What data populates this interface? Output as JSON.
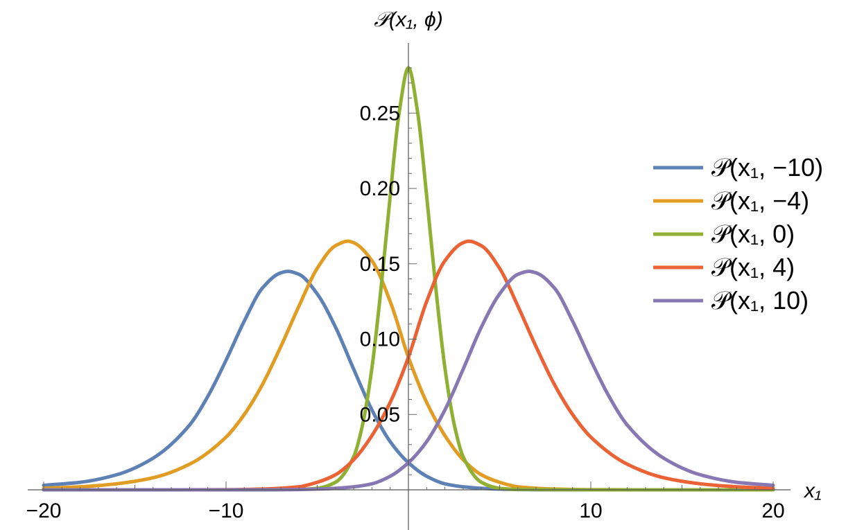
{
  "chart_data": {
    "type": "line",
    "xlabel": "x₁",
    "ylabel": "𝒫(x₁, ϕ)",
    "xlim": [
      -20,
      20
    ],
    "ylim": [
      0,
      0.28
    ],
    "x_ticks": [
      {
        "value": -20,
        "label": "−20"
      },
      {
        "value": -10,
        "label": "−10"
      },
      {
        "value": 10,
        "label": "10"
      },
      {
        "value": 20,
        "label": "20"
      }
    ],
    "y_ticks": [
      {
        "value": 0.05,
        "label": "0.05"
      },
      {
        "value": 0.1,
        "label": "0.10"
      },
      {
        "value": 0.15,
        "label": "0.15"
      },
      {
        "value": 0.2,
        "label": "0.20"
      },
      {
        "value": 0.25,
        "label": "0.25"
      }
    ],
    "legend_position": "right",
    "grid": false,
    "series": [
      {
        "name": "𝒫(x₁, −10)",
        "color": "#5E81B5",
        "x": [
          -20,
          -18,
          -16,
          -14,
          -12,
          -11,
          -10,
          -9,
          -8,
          -7,
          -6.6,
          -6,
          -5,
          -4,
          -3,
          -2,
          -1,
          0,
          1,
          2,
          3,
          4,
          5,
          6,
          8,
          10,
          15,
          20
        ],
        "y": [
          0.003,
          0.005,
          0.01,
          0.021,
          0.043,
          0.062,
          0.086,
          0.112,
          0.134,
          0.144,
          0.145,
          0.143,
          0.13,
          0.108,
          0.08,
          0.053,
          0.032,
          0.018,
          0.009,
          0.004,
          0.002,
          0.001,
          0.0005,
          0.0002,
          0,
          0,
          0,
          0
        ]
      },
      {
        "name": "𝒫(x₁, −4)",
        "color": "#E19C24",
        "x": [
          -20,
          -18,
          -16,
          -14,
          -12,
          -10,
          -9,
          -8,
          -7,
          -6,
          -5,
          -4,
          -3.3,
          -3,
          -2,
          -1,
          0,
          1,
          2,
          3,
          4,
          5,
          6,
          8,
          10,
          15,
          20
        ],
        "y": [
          0.001,
          0.002,
          0.004,
          0.008,
          0.017,
          0.035,
          0.05,
          0.07,
          0.095,
          0.122,
          0.147,
          0.162,
          0.165,
          0.164,
          0.152,
          0.125,
          0.088,
          0.058,
          0.036,
          0.02,
          0.01,
          0.005,
          0.002,
          0.0005,
          0.0001,
          0,
          0
        ]
      },
      {
        "name": "𝒫(x₁, 0)",
        "color": "#8FB032",
        "x": [
          -20,
          -10,
          -6,
          -5,
          -4,
          -3,
          -2.5,
          -2,
          -1.5,
          -1,
          -0.5,
          0,
          0.5,
          1,
          1.5,
          2,
          2.5,
          3,
          4,
          5,
          6,
          10,
          20
        ],
        "y": [
          0,
          0,
          0.0003,
          0.001,
          0.005,
          0.022,
          0.044,
          0.081,
          0.134,
          0.195,
          0.251,
          0.28,
          0.251,
          0.195,
          0.134,
          0.081,
          0.044,
          0.022,
          0.005,
          0.001,
          0.0003,
          0,
          0
        ]
      },
      {
        "name": "𝒫(x₁, 4)",
        "color": "#EB6235",
        "x": [
          -20,
          -15,
          -10,
          -8,
          -6,
          -5,
          -4,
          -3,
          -2,
          -1,
          0,
          1,
          2,
          3,
          3.3,
          4,
          5,
          6,
          7,
          8,
          9,
          10,
          12,
          14,
          16,
          18,
          20
        ],
        "y": [
          0,
          0,
          0.0001,
          0.0005,
          0.002,
          0.005,
          0.01,
          0.02,
          0.036,
          0.058,
          0.088,
          0.125,
          0.152,
          0.164,
          0.165,
          0.162,
          0.147,
          0.122,
          0.095,
          0.07,
          0.05,
          0.035,
          0.017,
          0.008,
          0.004,
          0.002,
          0.001
        ]
      },
      {
        "name": "𝒫(x₁, 10)",
        "color": "#8778B3",
        "x": [
          -20,
          -15,
          -10,
          -8,
          -6,
          -5,
          -4,
          -3,
          -2,
          -1,
          0,
          1,
          2,
          3,
          4,
          5,
          6,
          6.6,
          7,
          8,
          9,
          10,
          11,
          12,
          14,
          16,
          18,
          20
        ],
        "y": [
          0,
          0,
          0,
          0,
          0.0002,
          0.0005,
          0.001,
          0.002,
          0.004,
          0.009,
          0.018,
          0.032,
          0.053,
          0.08,
          0.108,
          0.13,
          0.143,
          0.145,
          0.144,
          0.134,
          0.112,
          0.086,
          0.062,
          0.043,
          0.021,
          0.01,
          0.005,
          0.003
        ]
      }
    ]
  }
}
